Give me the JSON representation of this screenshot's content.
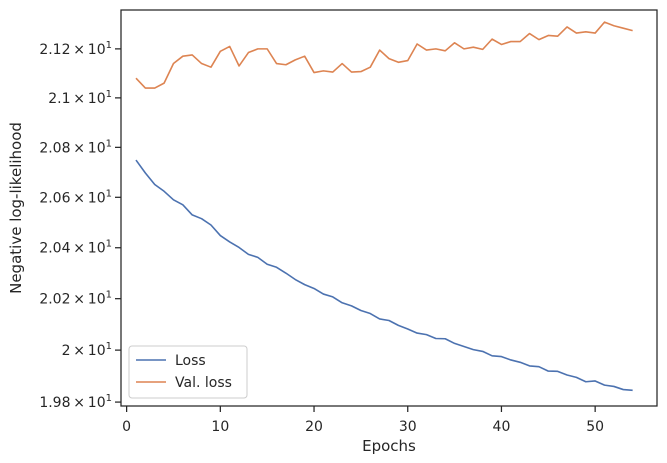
{
  "chart_data": {
    "type": "line",
    "xlabel": "Epochs",
    "ylabel": "Negative log-likelihood",
    "xlim": [
      -0.6,
      56.6
    ],
    "ylim": [
      19.785,
      21.36
    ],
    "yscale": "log",
    "grid": false,
    "legend_position": "lower-left",
    "x_ticks": [
      0,
      10,
      20,
      30,
      40,
      50
    ],
    "x_tick_labels": [
      "0",
      "10",
      "20",
      "30",
      "40",
      "50"
    ],
    "y_ticks": [
      19.8,
      20.0,
      20.2,
      20.4,
      20.6,
      20.8,
      21.0,
      21.2
    ],
    "y_tick_labels": [
      {
        "mant": "1.98",
        "exp": "1"
      },
      {
        "mant": "2",
        "exp": "1"
      },
      {
        "mant": "2.02",
        "exp": "1"
      },
      {
        "mant": "2.04",
        "exp": "1"
      },
      {
        "mant": "2.06",
        "exp": "1"
      },
      {
        "mant": "2.08",
        "exp": "1"
      },
      {
        "mant": "2.1",
        "exp": "1"
      },
      {
        "mant": "2.12",
        "exp": "1"
      }
    ],
    "y_tick_times": "×",
    "y_tick_base": "10",
    "series": [
      {
        "name": "Loss",
        "color": "#4c72b0",
        "x": [
          1,
          2,
          3,
          4,
          5,
          6,
          7,
          8,
          9,
          10,
          11,
          12,
          13,
          14,
          15,
          16,
          17,
          18,
          19,
          20,
          21,
          22,
          23,
          24,
          25,
          26,
          27,
          28,
          29,
          30,
          31,
          32,
          33,
          34,
          35,
          36,
          37,
          38,
          39,
          40,
          41,
          42,
          43,
          44,
          45,
          46,
          47,
          48,
          49,
          50,
          51,
          52,
          53,
          54
        ],
        "values": [
          20.749,
          20.697,
          20.651,
          20.624,
          20.59,
          20.57,
          20.53,
          20.515,
          20.49,
          20.448,
          20.423,
          20.401,
          20.374,
          20.362,
          20.335,
          20.323,
          20.3,
          20.275,
          20.255,
          20.24,
          20.218,
          20.207,
          20.184,
          20.172,
          20.154,
          20.142,
          20.121,
          20.115,
          20.096,
          20.082,
          20.066,
          20.06,
          20.045,
          20.044,
          20.026,
          20.014,
          20.002,
          19.995,
          19.978,
          19.975,
          19.962,
          19.953,
          19.939,
          19.936,
          19.919,
          19.918,
          19.904,
          19.895,
          19.878,
          19.881,
          19.865,
          19.86,
          19.848,
          19.845
        ]
      },
      {
        "name": "Val. loss",
        "color": "#dd8452",
        "x": [
          1,
          2,
          3,
          4,
          5,
          6,
          7,
          8,
          9,
          10,
          11,
          12,
          13,
          14,
          15,
          16,
          17,
          18,
          19,
          20,
          21,
          22,
          23,
          24,
          25,
          26,
          27,
          28,
          29,
          30,
          31,
          32,
          33,
          34,
          35,
          36,
          37,
          38,
          39,
          40,
          41,
          42,
          43,
          44,
          45,
          46,
          47,
          48,
          49,
          50,
          51,
          52,
          53,
          54
        ],
        "values": [
          21.08,
          21.04,
          21.04,
          21.06,
          21.14,
          21.17,
          21.175,
          21.14,
          21.125,
          21.19,
          21.21,
          21.13,
          21.185,
          21.2,
          21.2,
          21.14,
          21.135,
          21.155,
          21.17,
          21.103,
          21.11,
          21.105,
          21.14,
          21.105,
          21.107,
          21.125,
          21.195,
          21.16,
          21.145,
          21.152,
          21.22,
          21.195,
          21.2,
          21.192,
          21.225,
          21.2,
          21.207,
          21.198,
          21.24,
          21.218,
          21.23,
          21.23,
          21.263,
          21.238,
          21.255,
          21.252,
          21.29,
          21.265,
          21.27,
          21.265,
          21.31,
          21.295,
          21.285,
          21.275
        ]
      }
    ]
  }
}
